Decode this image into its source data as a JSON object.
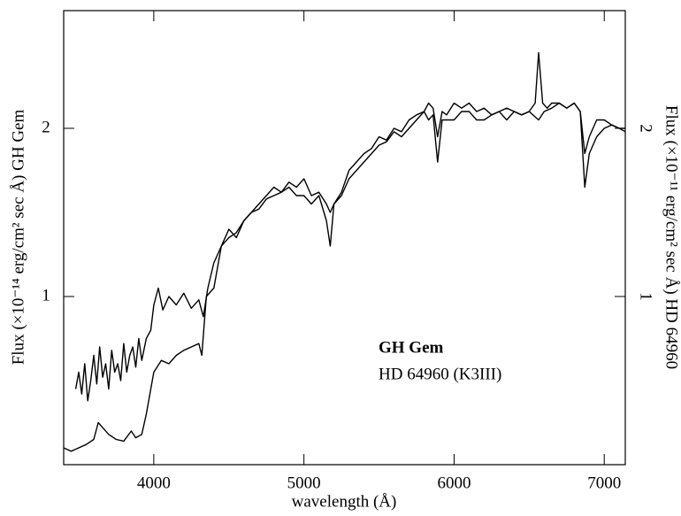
{
  "chart_data": {
    "type": "line",
    "xlabel": "wavelength (Å)",
    "ylabel": "Flux (×10⁻¹⁴ erg/cm² sec Å) GH Gem",
    "y2label": "Flux (×10⁻¹¹ erg/cm² sec Å) HD 64960",
    "xlim": [
      3400,
      7140
    ],
    "xticks": [
      4000,
      5000,
      6000,
      7000
    ],
    "ylim": [
      0,
      2.7
    ],
    "yticks": [
      1,
      2
    ],
    "y2lim": [
      0,
      2.7
    ],
    "y2ticks": [
      1,
      2
    ],
    "series": [
      {
        "name": "GH Gem",
        "color": "#000000",
        "x": [
          3480,
          3500,
          3520,
          3540,
          3560,
          3580,
          3600,
          3620,
          3640,
          3660,
          3680,
          3700,
          3720,
          3740,
          3760,
          3780,
          3800,
          3820,
          3840,
          3860,
          3880,
          3900,
          3920,
          3950,
          3980,
          4000,
          4030,
          4060,
          4100,
          4150,
          4200,
          4250,
          4300,
          4330,
          4360,
          4400,
          4450,
          4500,
          4550,
          4600,
          4650,
          4700,
          4750,
          4800,
          4850,
          4900,
          4950,
          5000,
          5050,
          5100,
          5150,
          5175,
          5200,
          5250,
          5300,
          5350,
          5400,
          5450,
          5500,
          5550,
          5600,
          5650,
          5700,
          5750,
          5800,
          5830,
          5860,
          5890,
          5920,
          5950,
          6000,
          6050,
          6100,
          6150,
          6200,
          6250,
          6300,
          6350,
          6400,
          6450,
          6500,
          6540,
          6563,
          6590,
          6620,
          6650,
          6700,
          6750,
          6800,
          6840,
          6870,
          6900,
          6950,
          7000,
          7050,
          7100,
          7140
        ],
        "values": [
          0.45,
          0.55,
          0.42,
          0.6,
          0.38,
          0.5,
          0.65,
          0.48,
          0.7,
          0.52,
          0.6,
          0.45,
          0.68,
          0.55,
          0.6,
          0.5,
          0.72,
          0.55,
          0.65,
          0.7,
          0.58,
          0.75,
          0.62,
          0.75,
          0.8,
          0.95,
          1.05,
          0.92,
          1.0,
          0.95,
          1.02,
          0.93,
          0.98,
          0.88,
          1.05,
          1.2,
          1.3,
          1.4,
          1.35,
          1.45,
          1.5,
          1.55,
          1.6,
          1.65,
          1.62,
          1.68,
          1.65,
          1.7,
          1.6,
          1.62,
          1.55,
          1.5,
          1.55,
          1.62,
          1.75,
          1.8,
          1.85,
          1.88,
          1.95,
          1.93,
          2.0,
          1.98,
          2.05,
          2.08,
          2.1,
          2.15,
          2.12,
          1.95,
          2.1,
          2.08,
          2.15,
          2.12,
          2.15,
          2.1,
          2.12,
          2.08,
          2.1,
          2.12,
          2.1,
          2.08,
          2.1,
          2.15,
          2.45,
          2.15,
          2.12,
          2.15,
          2.15,
          2.12,
          2.15,
          2.1,
          1.85,
          1.95,
          2.05,
          2.05,
          2.02,
          2.0,
          2.0
        ]
      },
      {
        "name": "HD 64960 (K3III)",
        "color": "#000000",
        "axis": "y2",
        "x": [
          3400,
          3450,
          3500,
          3550,
          3600,
          3630,
          3660,
          3700,
          3750,
          3800,
          3850,
          3880,
          3920,
          3950,
          3980,
          4000,
          4050,
          4100,
          4150,
          4200,
          4250,
          4300,
          4320,
          4350,
          4400,
          4450,
          4500,
          4550,
          4600,
          4650,
          4700,
          4750,
          4800,
          4850,
          4900,
          4950,
          5000,
          5050,
          5100,
          5150,
          5175,
          5200,
          5250,
          5300,
          5350,
          5400,
          5450,
          5500,
          5550,
          5600,
          5650,
          5700,
          5750,
          5800,
          5830,
          5860,
          5890,
          5920,
          5950,
          6000,
          6050,
          6100,
          6150,
          6200,
          6250,
          6300,
          6350,
          6400,
          6450,
          6500,
          6563,
          6600,
          6650,
          6700,
          6750,
          6800,
          6840,
          6870,
          6900,
          6950,
          7000,
          7050,
          7100,
          7140
        ],
        "values": [
          0.1,
          0.08,
          0.1,
          0.12,
          0.15,
          0.25,
          0.22,
          0.18,
          0.15,
          0.14,
          0.2,
          0.16,
          0.18,
          0.3,
          0.45,
          0.55,
          0.62,
          0.6,
          0.65,
          0.68,
          0.7,
          0.72,
          0.65,
          1.0,
          1.05,
          1.3,
          1.35,
          1.38,
          1.45,
          1.5,
          1.52,
          1.58,
          1.6,
          1.62,
          1.65,
          1.6,
          1.6,
          1.55,
          1.6,
          1.45,
          1.3,
          1.55,
          1.6,
          1.7,
          1.75,
          1.8,
          1.85,
          1.9,
          1.92,
          1.98,
          1.95,
          2.0,
          2.05,
          2.1,
          2.05,
          2.08,
          1.8,
          2.05,
          2.05,
          2.05,
          2.1,
          2.1,
          2.05,
          2.05,
          2.08,
          2.1,
          2.05,
          2.1,
          2.08,
          2.1,
          2.05,
          2.1,
          2.12,
          2.15,
          2.12,
          2.15,
          2.1,
          1.65,
          1.85,
          1.95,
          2.0,
          2.02,
          2.0,
          1.98
        ]
      }
    ]
  }
}
